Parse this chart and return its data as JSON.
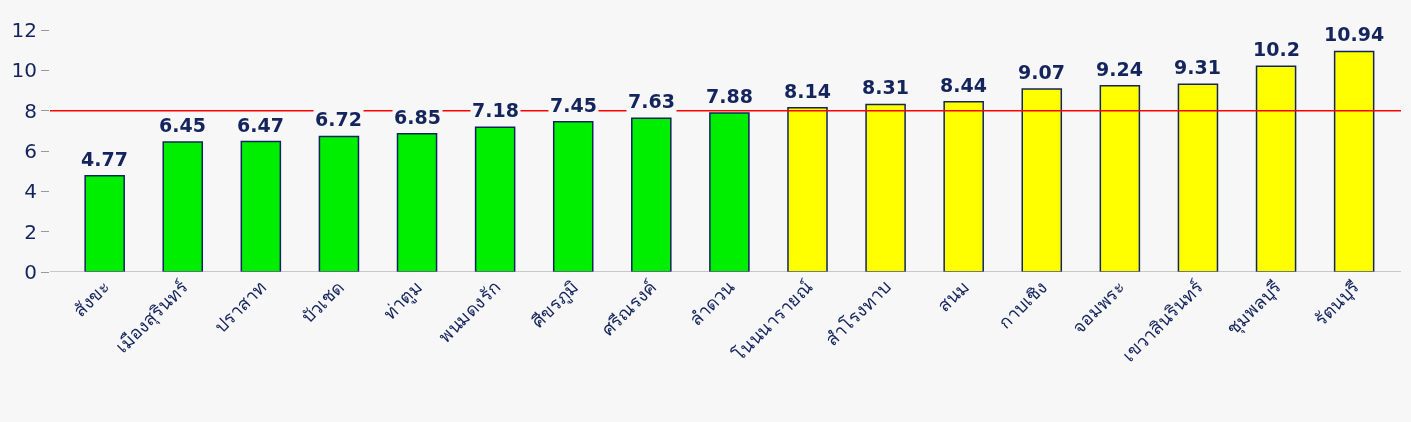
{
  "chart_data": {
    "type": "bar",
    "categories": [
      "สังขะ",
      "เมืองสุรินทร์",
      "ปราสาท",
      "บัวเชด",
      "ท่าตูม",
      "พนมดงรัก",
      "ศีขรภูมิ",
      "ศรีณรงค์",
      "ลำดวน",
      "โนนนารายณ์",
      "สำโรงทาบ",
      "สนม",
      "กาบเชิง",
      "จอมพระ",
      "เขวาสินรินทร์",
      "ชุมพลบุรี",
      "รัตนบุรี"
    ],
    "values": [
      4.77,
      6.45,
      6.47,
      6.72,
      6.85,
      7.18,
      7.45,
      7.63,
      7.88,
      8.14,
      8.31,
      8.44,
      9.07,
      9.24,
      9.31,
      10.2,
      10.94
    ],
    "colors": [
      "#00ee00",
      "#00ee00",
      "#00ee00",
      "#00ee00",
      "#00ee00",
      "#00ee00",
      "#00ee00",
      "#00ee00",
      "#00ee00",
      "#ffff00",
      "#ffff00",
      "#ffff00",
      "#ffff00",
      "#ffff00",
      "#ffff00",
      "#ffff00",
      "#ffff00"
    ],
    "ylim": [
      0,
      12
    ],
    "yticks": [
      0,
      2,
      4,
      6,
      8,
      10,
      12
    ],
    "grid": false,
    "data_labels": true,
    "ref_lines": [
      {
        "axis": "y",
        "value": 8,
        "color": "#ff0000"
      }
    ]
  }
}
